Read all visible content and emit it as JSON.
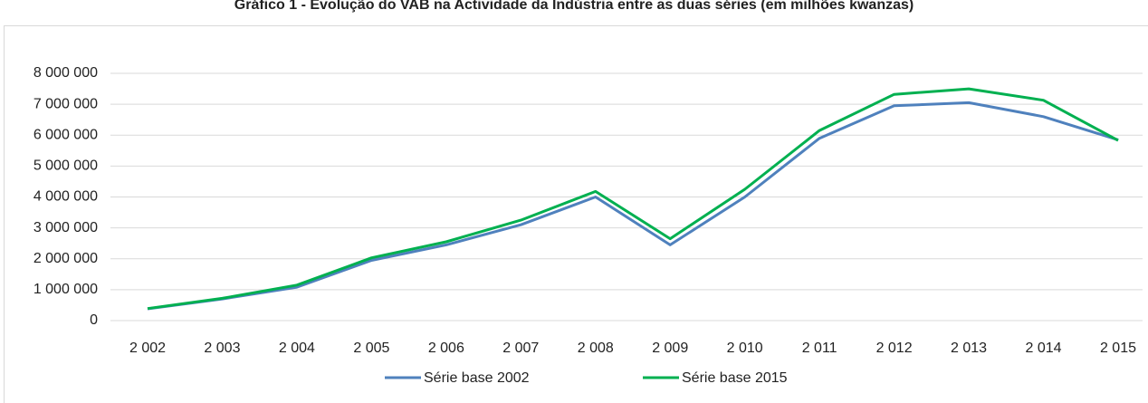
{
  "chart_data": {
    "type": "line",
    "title": "Gráfico 1 - Evolução do VAB na Actividade da Indústria entre as duas séries (em milhões kwanzas)",
    "categories": [
      "2 002",
      "2 003",
      "2 004",
      "2 005",
      "2 006",
      "2 007",
      "2 008",
      "2 009",
      "2 010",
      "2 011",
      "2 012",
      "2 013",
      "2 014",
      "2 015"
    ],
    "series": [
      {
        "name": "Série base 2002",
        "color": "#4f81bd",
        "values": [
          380000,
          700000,
          1080000,
          1950000,
          2450000,
          3100000,
          4000000,
          2450000,
          4000000,
          5900000,
          6950000,
          7050000,
          6600000,
          5850000
        ]
      },
      {
        "name": "Série base 2015",
        "color": "#00b050",
        "values": [
          390000,
          720000,
          1150000,
          2030000,
          2550000,
          3250000,
          4180000,
          2650000,
          4250000,
          6150000,
          7320000,
          7500000,
          7130000,
          5830000
        ]
      }
    ],
    "ylim": [
      0,
      8000000
    ],
    "yticks": [
      0,
      {
        "value": 1000000,
        "label": "1 000 000"
      },
      {
        "value": 2000000,
        "label": "2 000 000"
      },
      {
        "value": 3000000,
        "label": "3 000 000"
      },
      {
        "value": 4000000,
        "label": "4 000 000"
      },
      {
        "value": 5000000,
        "label": "5 000 000"
      },
      {
        "value": 6000000,
        "label": "6 000 000"
      },
      {
        "value": 7000000,
        "label": "7 000 000"
      },
      {
        "value": 8000000,
        "label": "8 000 000"
      }
    ],
    "grid": true,
    "legend": "bottom"
  }
}
